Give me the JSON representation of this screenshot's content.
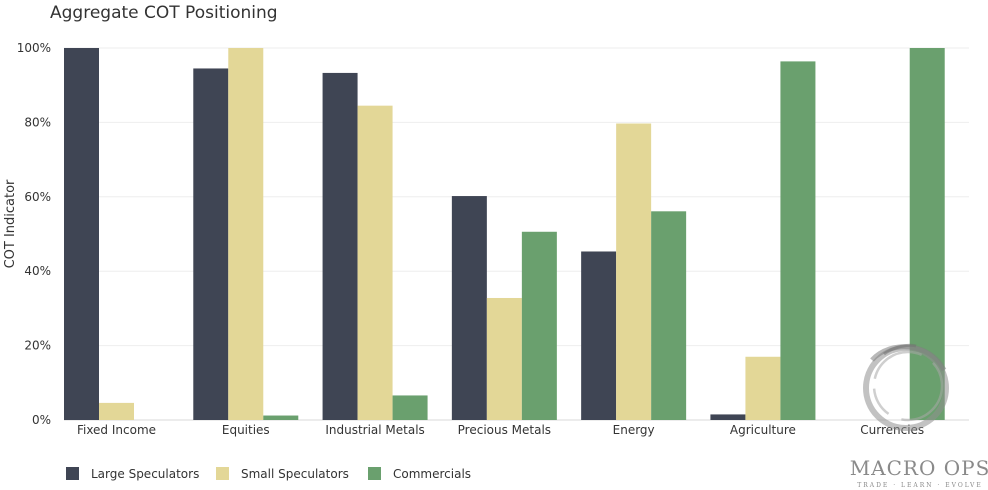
{
  "chart_data": {
    "type": "bar",
    "title": "Aggregate COT Positioning",
    "xlabel": "",
    "ylabel": "COT Indicator",
    "ylim": [
      0,
      100
    ],
    "yticks": [
      0,
      20,
      40,
      60,
      80,
      100
    ],
    "ytick_labels": [
      "0%",
      "20%",
      "40%",
      "60%",
      "80%",
      "100%"
    ],
    "categories": [
      "Fixed Income",
      "Equities",
      "Industrial Metals",
      "Precious Metals",
      "Energy",
      "Agriculture",
      "Currencies"
    ],
    "series": [
      {
        "name": "Large Speculators",
        "color": "#3f4554",
        "values": [
          100,
          94.5,
          93.3,
          60.2,
          45.3,
          1.5,
          0
        ]
      },
      {
        "name": "Small Speculators",
        "color": "#e3d797",
        "values": [
          4.6,
          100,
          84.5,
          32.8,
          79.7,
          17,
          0
        ]
      },
      {
        "name": "Commercials",
        "color": "#6aa06e",
        "values": [
          0,
          1.2,
          6.6,
          50.6,
          56.1,
          96.4,
          100
        ]
      }
    ],
    "grid": true,
    "legend_position": "bottom-left",
    "watermark": {
      "main": "MACRO OPS",
      "sub": "TRADE · LEARN · EVOLVE"
    }
  }
}
